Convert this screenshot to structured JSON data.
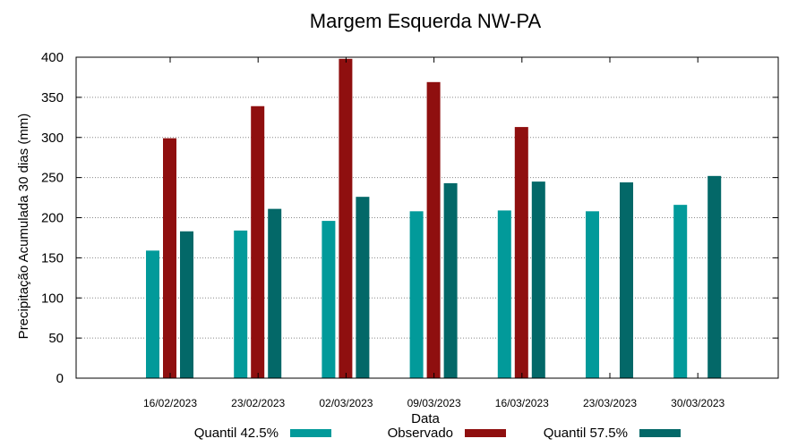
{
  "chart_data": {
    "type": "bar",
    "title": "Margem Esquerda NW-PA",
    "xlabel": "Data",
    "ylabel": "Precipitação Acumulada 30 dias (mm)",
    "ylim": [
      0,
      400
    ],
    "yticks": [
      0,
      50,
      100,
      150,
      200,
      250,
      300,
      350,
      400
    ],
    "grid": true,
    "legend_position": "bottom",
    "categories": [
      "16/02/2023",
      "23/02/2023",
      "02/03/2023",
      "09/03/2023",
      "16/03/2023",
      "23/03/2023",
      "30/03/2023"
    ],
    "series": [
      {
        "name": "Quantil 42.5%",
        "color": "#029a9a",
        "values": [
          159,
          184,
          196,
          208,
          209,
          208,
          216
        ]
      },
      {
        "name": "Observado",
        "color": "#8f0f0f",
        "values": [
          299,
          339,
          398,
          369,
          313,
          null,
          null
        ]
      },
      {
        "name": "Quantil 57.5%",
        "color": "#036868",
        "values": [
          183,
          211,
          226,
          243,
          245,
          244,
          252
        ]
      }
    ]
  }
}
